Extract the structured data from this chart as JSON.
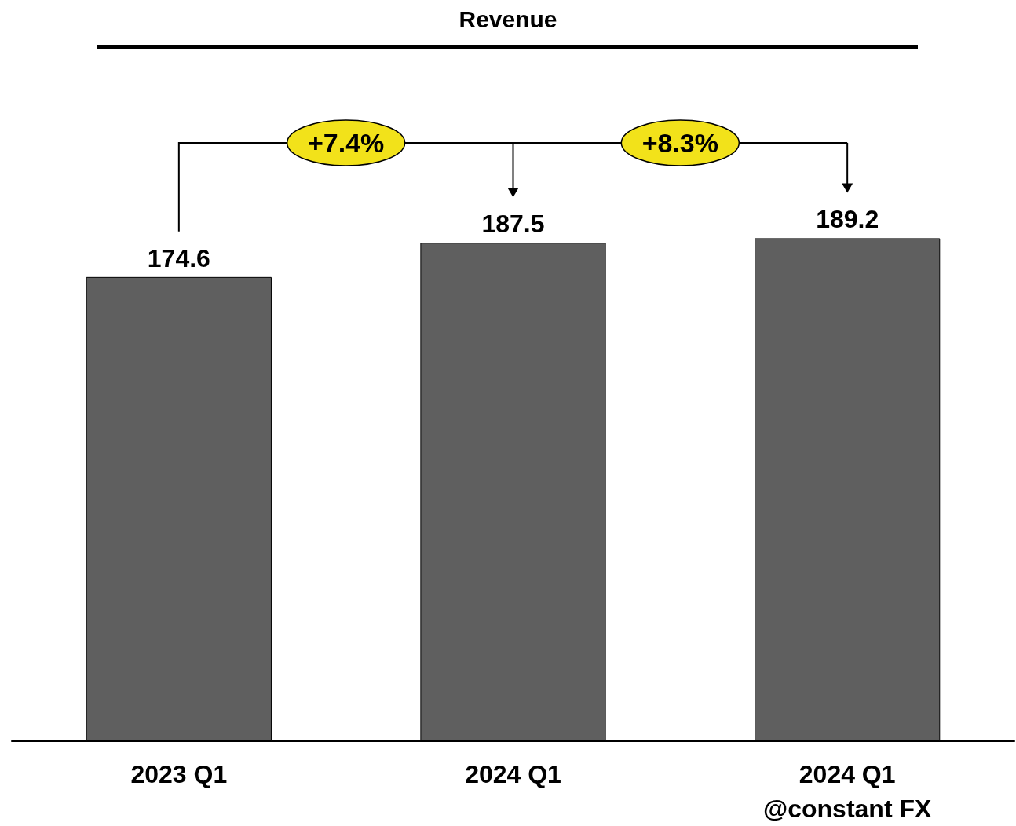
{
  "chart_data": {
    "type": "bar",
    "title": "Revenue",
    "categories": [
      "2023 Q1",
      "2024 Q1",
      "2024 Q1\n@constant FX"
    ],
    "values": [
      174.6,
      187.5,
      189.2
    ],
    "color": "#5f5f5f",
    "data_labels": true,
    "annotations": [
      "+7.4%",
      "+8.3%"
    ]
  }
}
